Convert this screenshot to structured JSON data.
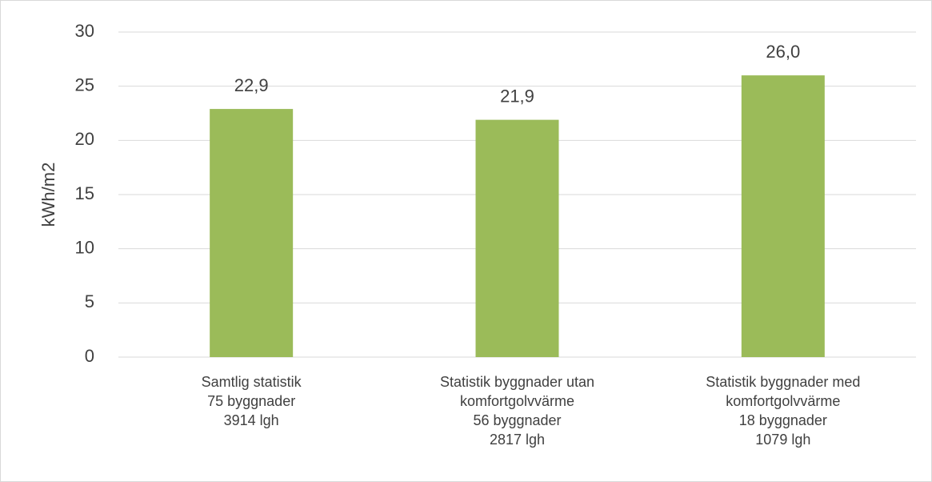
{
  "chart_data": {
    "type": "bar",
    "ylabel": "kWh/m2",
    "categories": [
      [
        "Samtlig statistik",
        "75 byggnader",
        "3914 lgh"
      ],
      [
        "Statistik byggnader utan",
        "komfortgolvvärme",
        "56 byggnader",
        "2817 lgh"
      ],
      [
        "Statistik byggnader med",
        "komfortgolvvärme",
        "18 byggnader",
        "1079 lgh"
      ]
    ],
    "values": [
      22.9,
      21.9,
      26.0
    ],
    "value_labels": [
      "22,9",
      "21,9",
      "26,0"
    ],
    "color": "#9bbb59",
    "ylim": [
      0,
      30
    ],
    "yticks": [
      0,
      5,
      10,
      15,
      20,
      25,
      30
    ],
    "grid": true
  }
}
